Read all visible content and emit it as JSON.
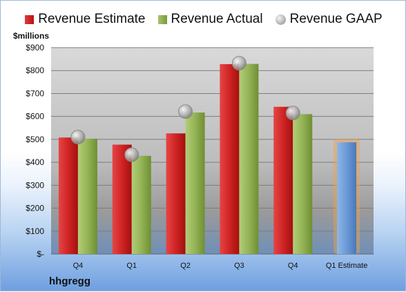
{
  "chart_data": {
    "type": "bar",
    "y_unit_label": "$millions",
    "company": "hhgregg",
    "categories": [
      "Q4",
      "Q1",
      "Q2",
      "Q3",
      "Q4",
      "Q1 Estimate"
    ],
    "series": [
      {
        "name": "Revenue Estimate",
        "kind": "bar",
        "color": "#c71f1f",
        "values": [
          508,
          477,
          526,
          828,
          642,
          null
        ]
      },
      {
        "name": "Revenue Actual",
        "kind": "bar",
        "color": "#8fae4e",
        "values": [
          503,
          428,
          617,
          829,
          610,
          null
        ]
      },
      {
        "name": "Revenue GAAP",
        "kind": "marker",
        "color": "#a9a9a9",
        "values": [
          510,
          433,
          621,
          832,
          615,
          null
        ]
      },
      {
        "name": "Q1 Estimate",
        "kind": "bar",
        "color": "#6f9fd8",
        "values": [
          null,
          null,
          null,
          null,
          null,
          487
        ]
      }
    ],
    "y_ticks": [
      "$-",
      "$100",
      "$200",
      "$300",
      "$400",
      "$500",
      "$600",
      "$700",
      "$800",
      "$900"
    ],
    "ylim": [
      0,
      900
    ],
    "grid": true,
    "legend": "top"
  }
}
